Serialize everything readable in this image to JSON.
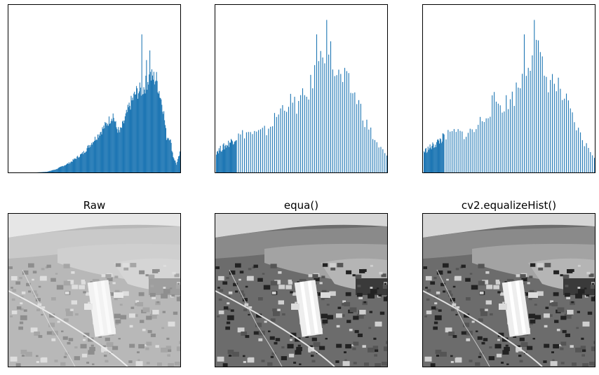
{
  "colors": {
    "bar": "#1f77b4",
    "frame": "#000000"
  },
  "chart_data": [
    {
      "type": "bar",
      "subject": "histogram-raw",
      "x_range": [
        0,
        255
      ],
      "grid": false,
      "ticks": "none",
      "profile": {
        "bins": [
          0,
          20,
          40,
          56,
          70,
          90,
          110,
          130,
          145,
          155,
          160,
          165,
          170,
          180,
          190,
          200,
          210,
          220,
          230,
          235,
          240,
          245,
          250,
          255
        ],
        "heights": [
          0,
          0,
          0,
          0.004,
          0.02,
          0.06,
          0.12,
          0.22,
          0.3,
          0.36,
          0.28,
          0.25,
          0.3,
          0.42,
          0.5,
          0.52,
          0.6,
          0.58,
          0.4,
          0.22,
          0.22,
          0.1,
          0.05,
          0.12
        ]
      },
      "peaks": [
        {
          "x": 198,
          "height": 0.86
        },
        {
          "x": 205,
          "height": 0.7
        },
        {
          "x": 210,
          "height": 0.76
        }
      ]
    },
    {
      "type": "bar",
      "subject": "histogram-equa",
      "x_range": [
        0,
        255
      ],
      "grid": false,
      "ticks": "none",
      "profile": {
        "bins": [
          0,
          15,
          30,
          45,
          60,
          75,
          90,
          105,
          120,
          135,
          150,
          165,
          180,
          195,
          210,
          225,
          240,
          255
        ],
        "heights": [
          0.13,
          0.17,
          0.22,
          0.25,
          0.24,
          0.26,
          0.35,
          0.44,
          0.42,
          0.48,
          0.62,
          0.82,
          0.6,
          0.56,
          0.46,
          0.3,
          0.18,
          0.1
        ]
      },
      "peaks": [
        {
          "x": 140,
          "height": 0.8
        },
        {
          "x": 150,
          "height": 0.86
        },
        {
          "x": 158,
          "height": 0.83
        },
        {
          "x": 165,
          "height": 0.95
        }
      ]
    },
    {
      "type": "bar",
      "subject": "histogram-cv2-equalizeHist",
      "x_range": [
        0,
        255
      ],
      "grid": false,
      "ticks": "none",
      "profile": {
        "bins": [
          0,
          15,
          30,
          45,
          60,
          75,
          90,
          105,
          120,
          135,
          150,
          165,
          180,
          195,
          210,
          225,
          240,
          255
        ],
        "heights": [
          0.13,
          0.17,
          0.22,
          0.25,
          0.24,
          0.26,
          0.35,
          0.44,
          0.42,
          0.48,
          0.62,
          0.82,
          0.6,
          0.56,
          0.46,
          0.3,
          0.18,
          0.1
        ]
      },
      "peaks": [
        {
          "x": 140,
          "height": 0.8
        },
        {
          "x": 150,
          "height": 0.86
        },
        {
          "x": 158,
          "height": 0.83
        },
        {
          "x": 165,
          "height": 0.95
        }
      ]
    }
  ],
  "images": [
    {
      "title": "Raw",
      "tone": "low-contrast"
    },
    {
      "title": "equa()",
      "tone": "high-contrast"
    },
    {
      "title": "cv2.equalizeHist()",
      "tone": "high-contrast"
    }
  ]
}
